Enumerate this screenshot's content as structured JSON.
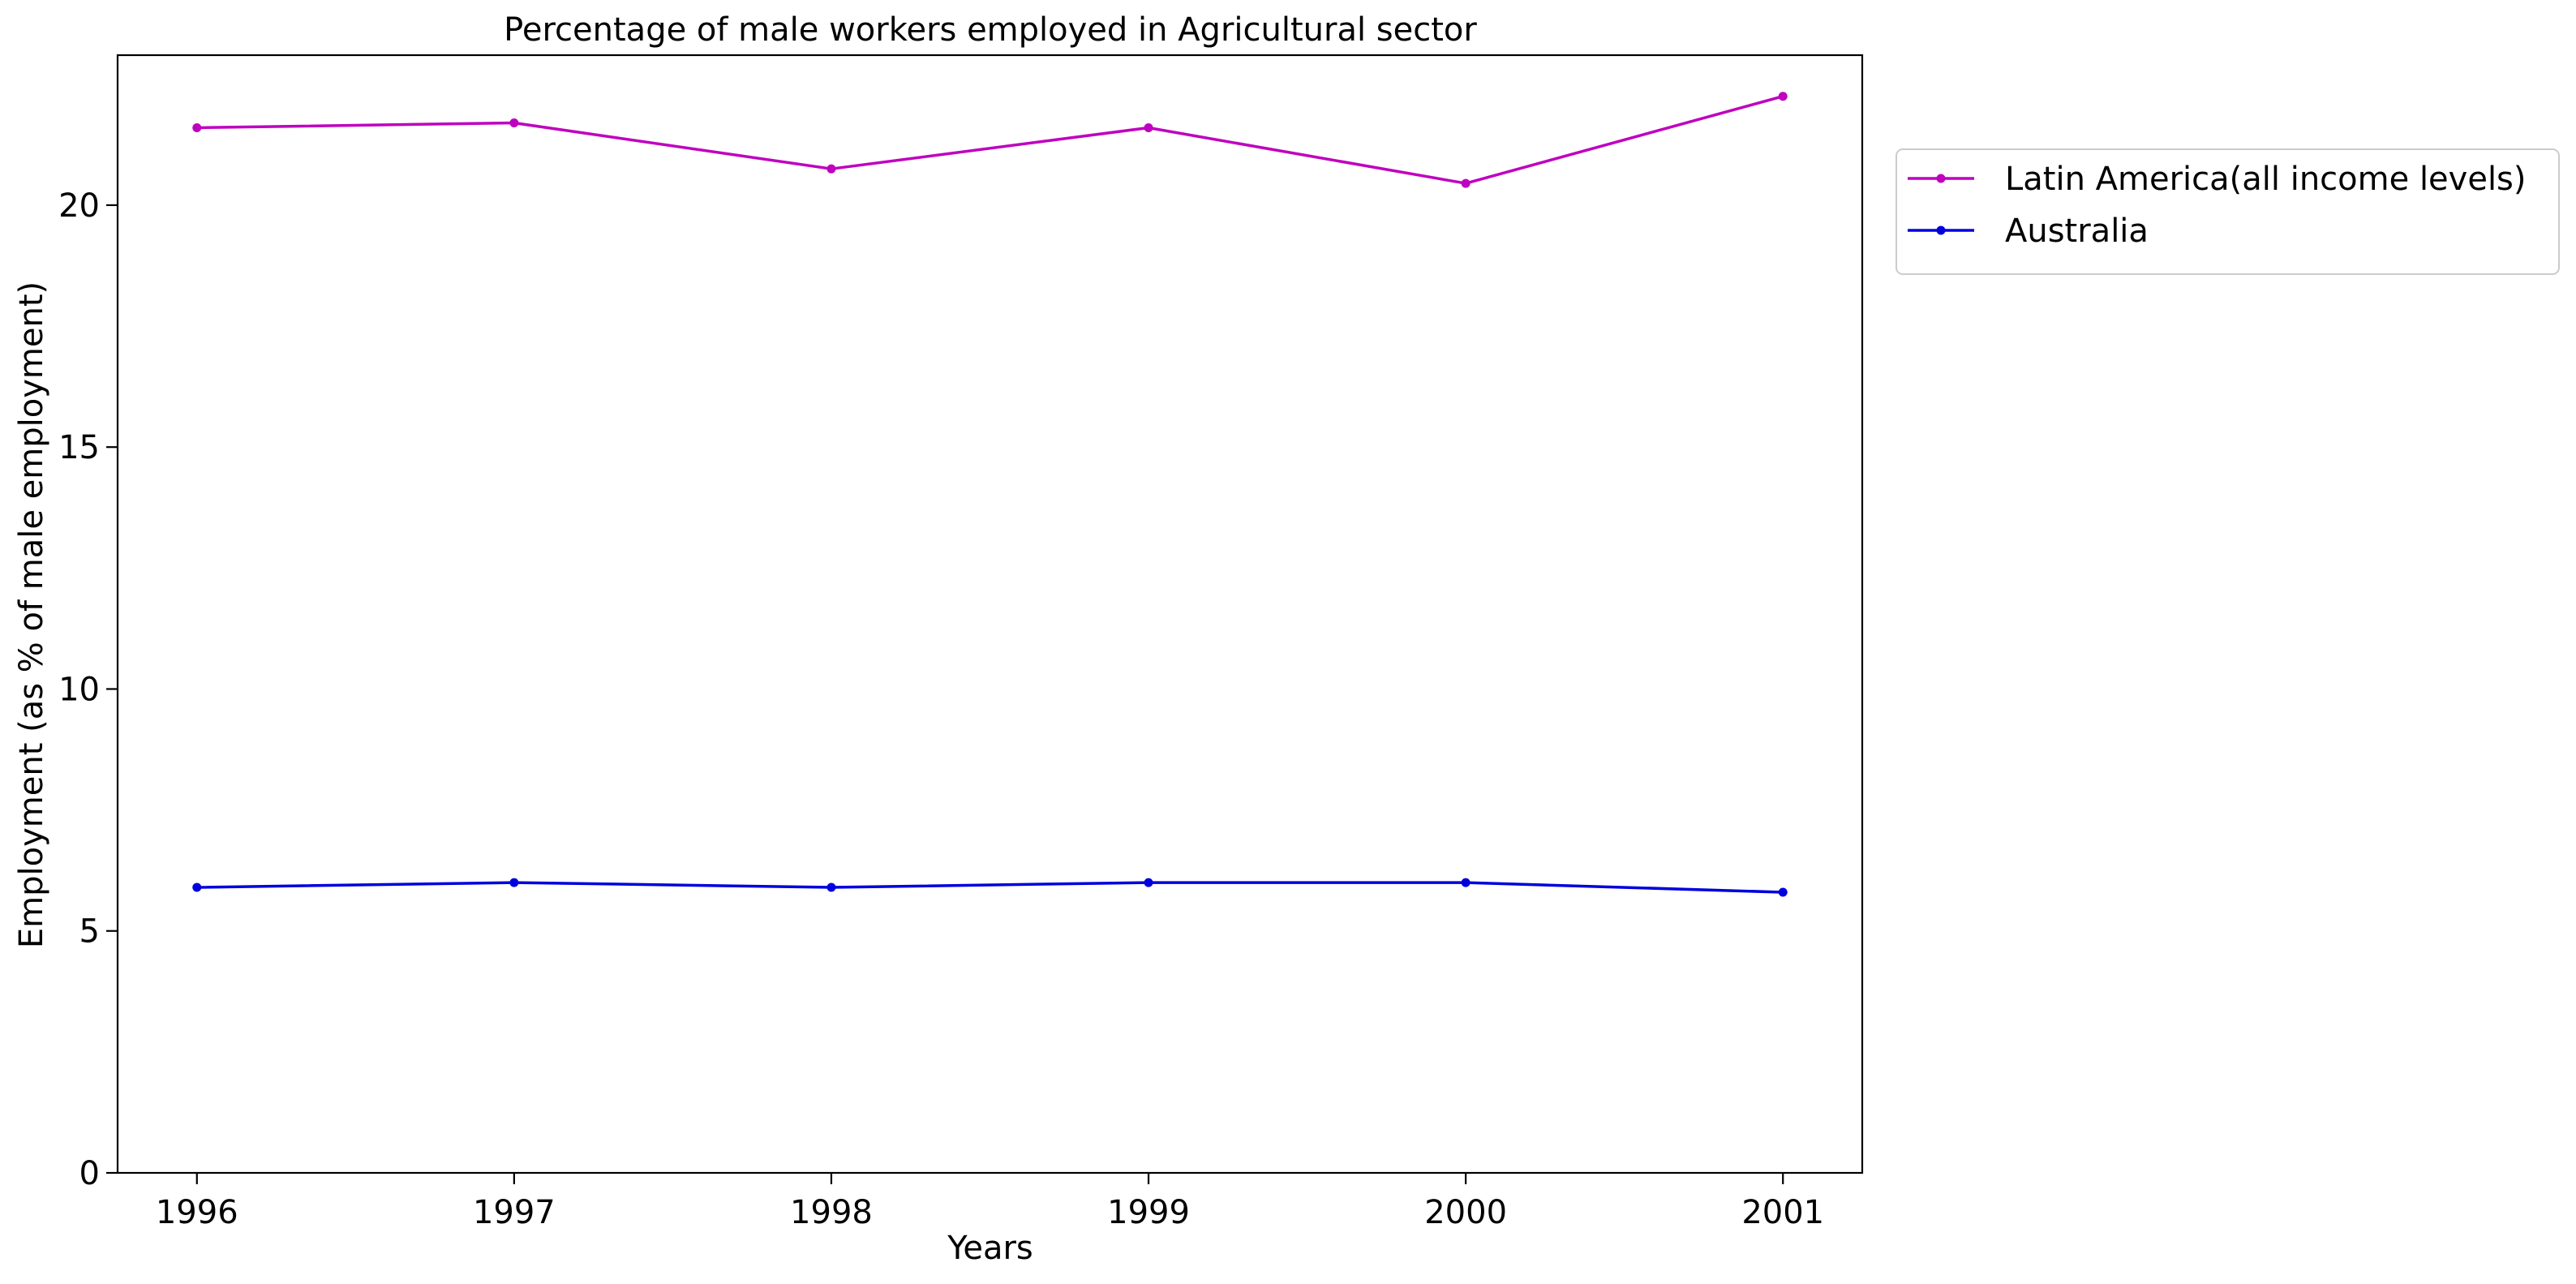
{
  "chart_data": {
    "type": "line",
    "title": "Percentage of male workers employed in Agricultural sector",
    "xlabel": "Years",
    "ylabel": "Employment (as % of male employment)",
    "x": [
      1996,
      1997,
      1998,
      1999,
      2000,
      2001
    ],
    "xlim": [
      1995.75,
      2001.25
    ],
    "ylim": [
      0,
      23.1
    ],
    "yticks": [
      0,
      5,
      10,
      15,
      20
    ],
    "grid": false,
    "legend_position": "outside-top-right",
    "series": [
      {
        "name": "Latin America(all income levels)",
        "color": "#bf00bf",
        "values": [
          21.6,
          21.7,
          20.75,
          21.6,
          20.45,
          22.25
        ]
      },
      {
        "name": "Australia",
        "color": "#0000dd",
        "values": [
          5.9,
          6.0,
          5.9,
          6.0,
          6.0,
          5.8
        ]
      }
    ]
  }
}
